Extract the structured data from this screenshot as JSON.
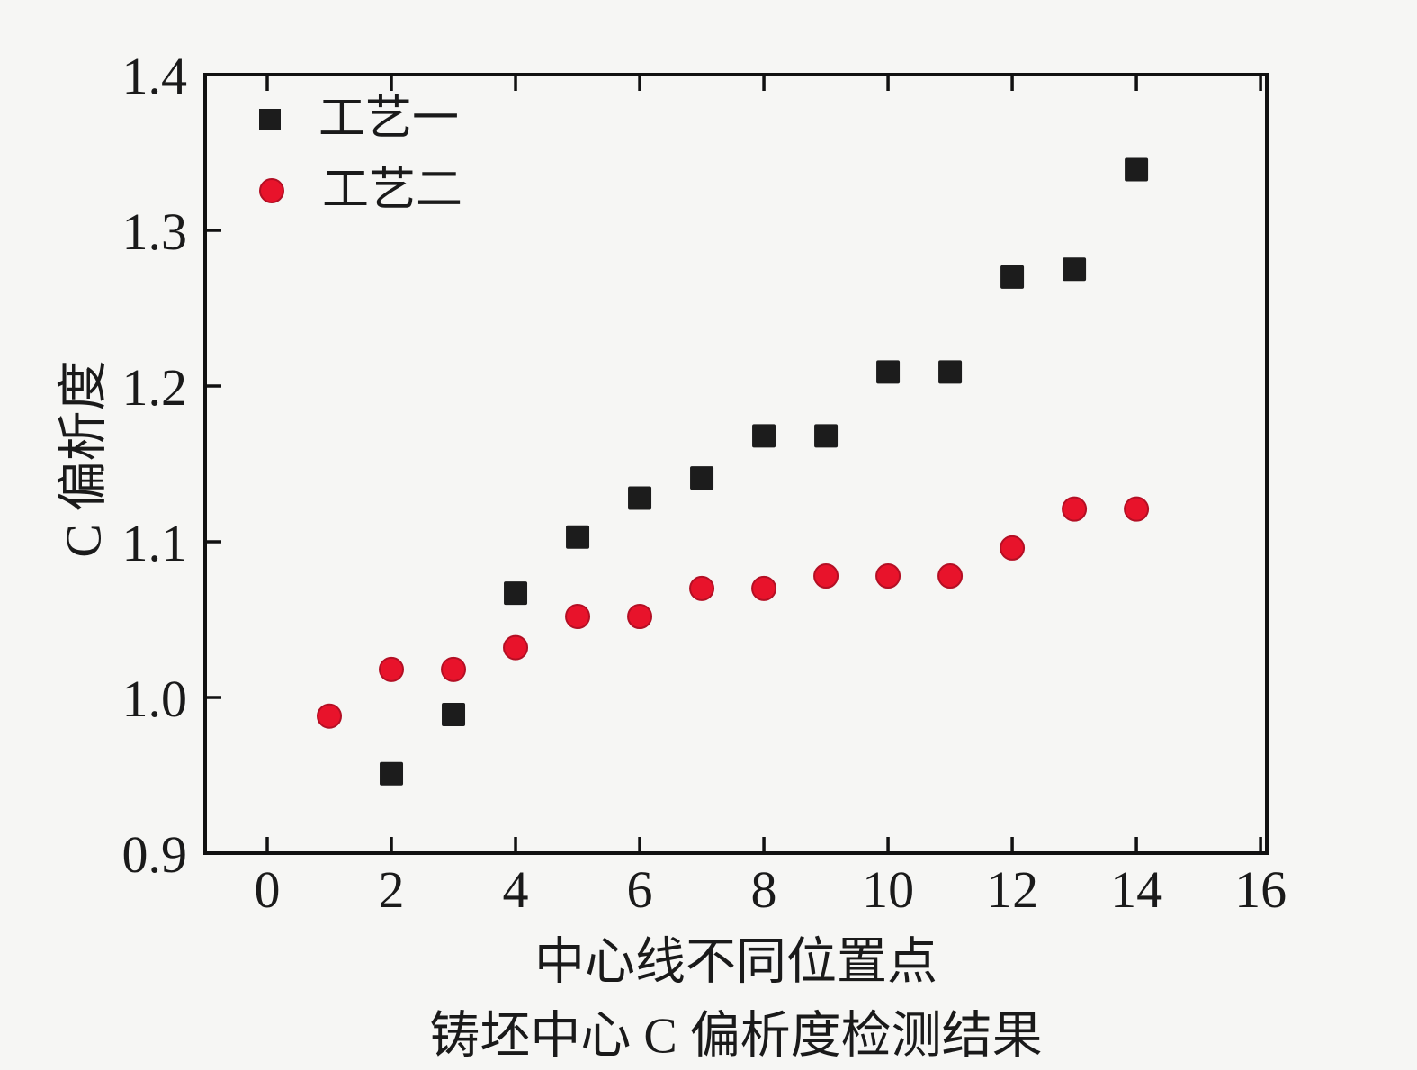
{
  "figure": {
    "background": "#f6f6f4",
    "axis_color": "#111111",
    "text_color": "#1a1a1a"
  },
  "chart_data": {
    "type": "scatter",
    "title": "",
    "xlabel": "中心线不同位置点",
    "ylabel": "C 偏析度",
    "caption": "铸坯中心 C 偏析度检测结果",
    "xlim": [
      -1,
      16.1
    ],
    "ylim": [
      0.9,
      1.4
    ],
    "grid": false,
    "legend_position": "top-left-inside",
    "x_ticks": {
      "values": [
        0,
        2,
        4,
        6,
        8,
        10,
        12,
        14,
        16
      ],
      "labels": [
        "0",
        "2",
        "4",
        "6",
        "8",
        "10",
        "12",
        "14",
        "16"
      ]
    },
    "y_ticks": {
      "values": [
        0.9,
        1.0,
        1.1,
        1.2,
        1.3,
        1.4
      ],
      "labels": [
        "0.9",
        "1.0",
        "1.1",
        "1.2",
        "1.3",
        "1.4"
      ]
    },
    "series": [
      {
        "name": "工艺一",
        "marker": "square",
        "color": "#1c1c1c",
        "edge_color": "#000000",
        "x": [
          2,
          3,
          4,
          5,
          6,
          7,
          8,
          9,
          10,
          11,
          12,
          13,
          14
        ],
        "y": [
          0.951,
          0.989,
          1.067,
          1.103,
          1.128,
          1.141,
          1.168,
          1.168,
          1.209,
          1.209,
          1.27,
          1.275,
          1.339
        ]
      },
      {
        "name": "工艺二",
        "marker": "circle",
        "color": "#e8132b",
        "edge_color": "#b40f24",
        "x": [
          1,
          2,
          3,
          4,
          5,
          6,
          7,
          8,
          9,
          10,
          11,
          12,
          13,
          14
        ],
        "y": [
          0.988,
          1.018,
          1.018,
          1.032,
          1.052,
          1.052,
          1.07,
          1.07,
          1.078,
          1.078,
          1.078,
          1.096,
          1.121,
          1.121
        ]
      }
    ]
  }
}
